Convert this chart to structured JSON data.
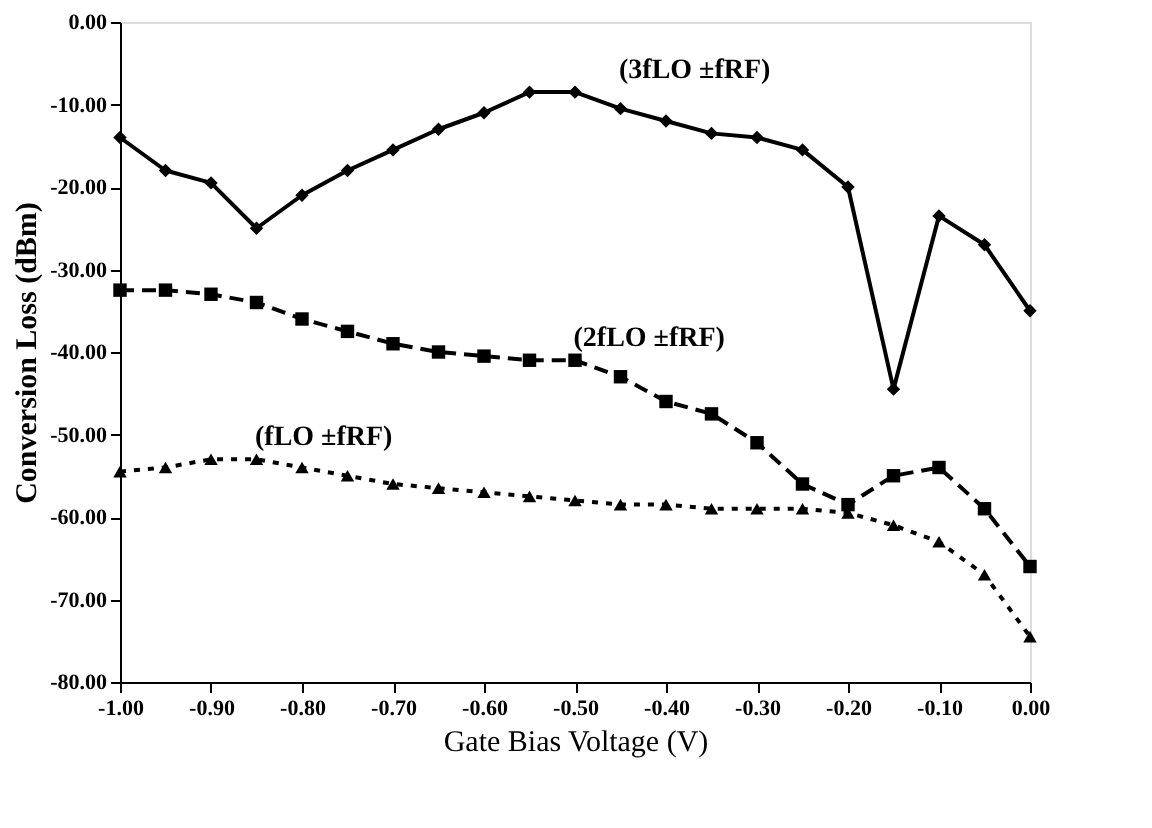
{
  "chart_data": {
    "type": "line",
    "xlabel": "Gate Bias Voltage (V)",
    "ylabel": "Conversion Loss (dBm)",
    "x": [
      -1.0,
      -0.95,
      -0.9,
      -0.85,
      -0.8,
      -0.75,
      -0.7,
      -0.65,
      -0.6,
      -0.55,
      -0.5,
      -0.45,
      -0.4,
      -0.35,
      -0.3,
      -0.25,
      -0.2,
      -0.15,
      -0.1,
      -0.05,
      0.0
    ],
    "series": [
      {
        "color": "#000000",
        "marker": "diamond",
        "line_style": "solid",
        "values": [
          -14,
          -18,
          -19.5,
          -25,
          -21,
          -18,
          -15.5,
          -13,
          -11,
          -8.5,
          -8.5,
          -10.5,
          -12,
          -13.5,
          -14,
          -15.5,
          -20,
          -44.5,
          -23.5,
          -27,
          -35
        ]
      },
      {
        "color": "#000000",
        "marker": "square",
        "line_style": "dashed",
        "values": [
          -32.5,
          -32.5,
          -33,
          -34,
          -36,
          -37.5,
          -39,
          -40,
          -40.5,
          -41,
          -41,
          -43,
          -46,
          -47.5,
          -51,
          -56,
          -58.5,
          -55,
          -54,
          -59,
          -66
        ]
      },
      {
        "color": "#000000",
        "marker": "triangle",
        "line_style": "dotted",
        "values": [
          -54.5,
          -54,
          -53,
          -53,
          -54,
          -55,
          -56,
          -56.5,
          -57,
          -57.5,
          -58,
          -58.5,
          -58.5,
          -59,
          -59,
          -59,
          -59.5,
          -61,
          -63,
          -67,
          -74.5
        ]
      }
    ],
    "annotations": [
      {
        "text": "(3fLO ±fRF)",
        "x": -0.5,
        "y": -8.5
      },
      {
        "text": "(2fLO ±fRF)",
        "x": -0.55,
        "y": -41
      },
      {
        "text": "(fLO ±fRF)",
        "x": -0.9,
        "y": -53
      }
    ],
    "xlim": [
      -1.0,
      0.0
    ],
    "ylim": [
      -80,
      0
    ],
    "xticks": [
      {
        "value": -1.0,
        "label": "-1.00"
      },
      {
        "value": -0.9,
        "label": "-0.90"
      },
      {
        "value": -0.8,
        "label": "-0.80"
      },
      {
        "value": -0.7,
        "label": "-0.70"
      },
      {
        "value": -0.6,
        "label": "-0.60"
      },
      {
        "value": -0.5,
        "label": "-0.50"
      },
      {
        "value": -0.4,
        "label": "-0.40"
      },
      {
        "value": -0.3,
        "label": "-0.30"
      },
      {
        "value": -0.2,
        "label": "-0.20"
      },
      {
        "value": -0.1,
        "label": "-0.10"
      },
      {
        "value": 0.0,
        "label": "0.00"
      }
    ],
    "yticks": [
      {
        "value": 0,
        "label": "0.00"
      },
      {
        "value": -10,
        "label": "-10.00"
      },
      {
        "value": -20,
        "label": "-20.00"
      },
      {
        "value": -30,
        "label": "-30.00"
      },
      {
        "value": -40,
        "label": "-40.00"
      },
      {
        "value": -50,
        "label": "-50.00"
      },
      {
        "value": -60,
        "label": "-60.00"
      },
      {
        "value": -70,
        "label": "-70.00"
      },
      {
        "value": -80,
        "label": "-80.00"
      }
    ],
    "grid": false
  }
}
